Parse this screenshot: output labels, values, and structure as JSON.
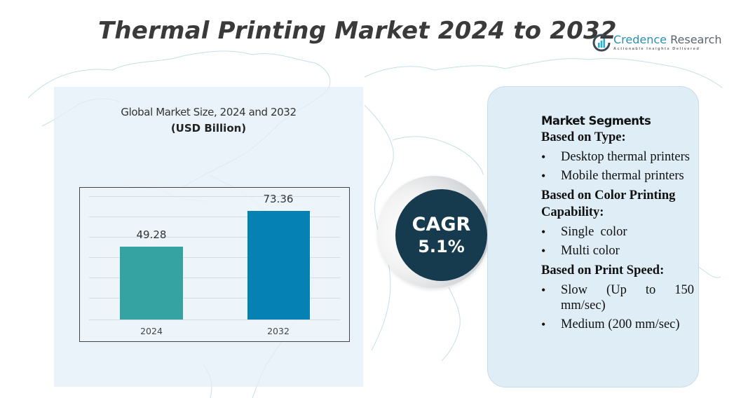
{
  "header": {
    "title": "Thermal Printing Market 2024 to 2032",
    "logo": {
      "name_part1": "Credence",
      "name_part2": "Research",
      "tagline": "Actionable Insights Delivered",
      "icon": "bar-chart-circle-icon"
    }
  },
  "chart_panel": {
    "title": "Global Market Size,  2024 and 2032",
    "subtitle": "(USD Billion)"
  },
  "chart_data": {
    "type": "bar",
    "title": "Global Market Size, 2024 and 2032",
    "subtitle": "(USD Billion)",
    "categories": [
      "2024",
      "2032"
    ],
    "values": [
      49.28,
      73.36
    ],
    "value_labels": [
      "49.28",
      "73.36"
    ],
    "colors": [
      "#35a3a2",
      "#0681b3"
    ],
    "xlabel": "",
    "ylabel": "USD Billion",
    "ylim": [
      0,
      80
    ],
    "grid": true,
    "legend": "none"
  },
  "cagr": {
    "label": "CAGR",
    "value": "5.1%",
    "color": "#173b4e"
  },
  "segments": {
    "heading": "Market Segments",
    "groups": [
      {
        "title": "Based on Type:",
        "items": [
          "Desktop thermal printers",
          "Mobile thermal printers"
        ]
      },
      {
        "title": "Based on Color Printing Capability:",
        "items": [
          "Single  color",
          "Multi color"
        ]
      },
      {
        "title": "Based on Print Speed:",
        "items": [
          "Slow (Up to 150 mm/sec)",
          "Medium (200 mm/sec)"
        ],
        "item0_parts": [
          "Slow",
          "(Up",
          "to",
          "150",
          "mm/sec)"
        ]
      }
    ]
  }
}
